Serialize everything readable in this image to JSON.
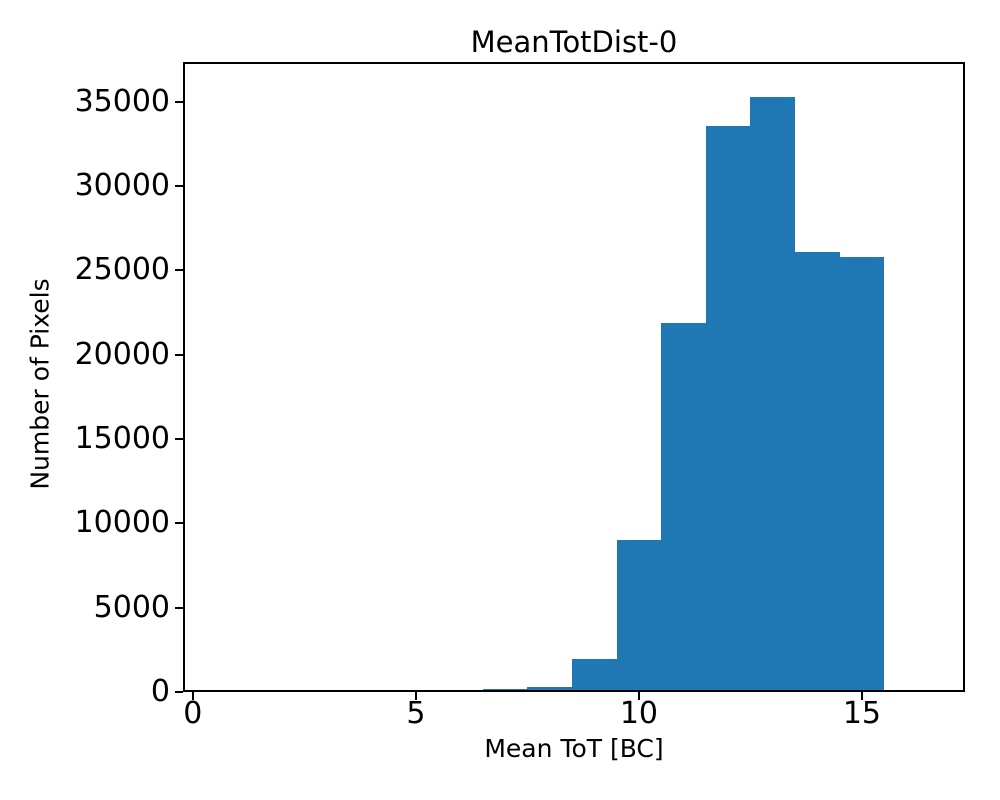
{
  "figure": {
    "background": "#ffffff",
    "text_color": "#000000"
  },
  "chart_data": {
    "type": "bar",
    "subtype": "histogram",
    "title": "MeanTotDist-0",
    "xlabel": "Mean ToT [BC]",
    "ylabel": "Number of Pixels",
    "bin_edges": [
      6.5,
      7.5,
      8.5,
      9.5,
      10.5,
      11.5,
      12.5,
      13.5,
      14.5,
      15.5
    ],
    "counts": [
      180,
      300,
      1950,
      9000,
      21900,
      33550,
      35280,
      26100,
      25800
    ],
    "bar_color": "#1f77b4",
    "xlim": [
      -0.22,
      17.31
    ],
    "ylim": [
      0,
      37350
    ],
    "xticks": [
      0,
      5,
      10,
      15
    ],
    "yticks": [
      0,
      5000,
      10000,
      15000,
      20000,
      25000,
      30000,
      35000
    ],
    "grid": false,
    "legend": null
  }
}
